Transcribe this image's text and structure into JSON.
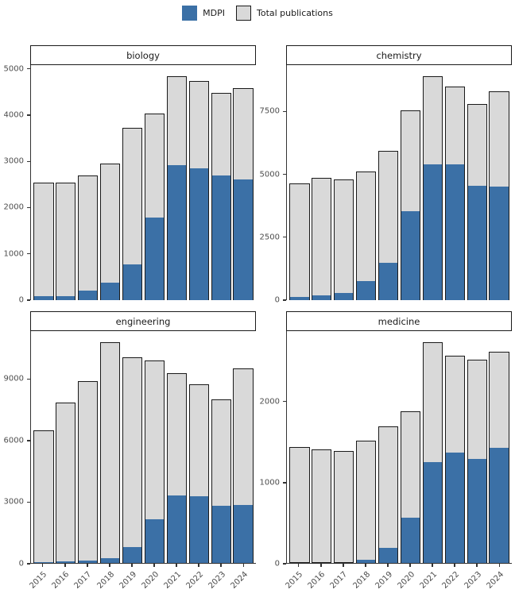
{
  "chart_data": {
    "type": "bar",
    "layout": "2x2-facets-free-y",
    "grid": "off",
    "legend": {
      "position": "top",
      "entries": [
        {
          "label": "MDPI",
          "color": "#3B70A6"
        },
        {
          "label": "Total publications",
          "color": "#D9D9D9",
          "border_color": "#1A1A1A"
        }
      ]
    },
    "categories": [
      "2015",
      "2016",
      "2017",
      "2018",
      "2019",
      "2020",
      "2021",
      "2022",
      "2023",
      "2024"
    ],
    "colors": {
      "mdpi": "#3B70A6",
      "total": "#D9D9D9",
      "bar_border": "#1A1A1A",
      "axis": "#333333",
      "tick_text": "#4D4D4D"
    },
    "facets": [
      {
        "title": "biology",
        "ylim": [
          0,
          5080
        ],
        "yticks": [
          0,
          1000,
          2000,
          3000,
          4000,
          5000
        ],
        "series": [
          {
            "name": "Total publications",
            "values": [
              2540,
              2540,
              2700,
              2950,
              3720,
              4030,
              4840,
              4730,
              4480,
              4580
            ]
          },
          {
            "name": "MDPI",
            "values": [
              90,
              90,
              200,
              380,
              780,
              1780,
              2920,
              2850,
              2700,
              2610
            ]
          }
        ]
      },
      {
        "title": "chemistry",
        "ylim": [
          0,
          9345
        ],
        "yticks": [
          0,
          2500,
          5000,
          7500
        ],
        "series": [
          {
            "name": "Total publications",
            "values": [
              4650,
              4850,
              4800,
              5100,
              5950,
              7550,
              8900,
              8500,
              7800,
              8300
            ]
          },
          {
            "name": "MDPI",
            "values": [
              120,
              180,
              300,
              750,
              1500,
              3550,
              5400,
              5400,
              4550,
              4500
            ]
          }
        ]
      },
      {
        "title": "engineering",
        "ylim": [
          0,
          11340
        ],
        "yticks": [
          0,
          3000,
          6000,
          9000
        ],
        "series": [
          {
            "name": "Total publications",
            "values": [
              6500,
              7850,
              8900,
              10800,
              10050,
              9900,
              9300,
              8750,
              8000,
              9500
            ]
          },
          {
            "name": "MDPI",
            "values": [
              50,
              80,
              120,
              250,
              780,
              2150,
              3300,
              3250,
              2800,
              2850
            ]
          }
        ]
      },
      {
        "title": "medicine",
        "ylim": [
          0,
          2870
        ],
        "yticks": [
          0,
          1000,
          2000
        ],
        "series": [
          {
            "name": "Total publications",
            "values": [
              1440,
              1410,
              1390,
              1510,
              1690,
              1880,
              2730,
              2570,
              2520,
              2610
            ]
          },
          {
            "name": "MDPI",
            "values": [
              0,
              0,
              0,
              40,
              190,
              560,
              1250,
              1370,
              1290,
              1430
            ]
          }
        ]
      }
    ]
  }
}
